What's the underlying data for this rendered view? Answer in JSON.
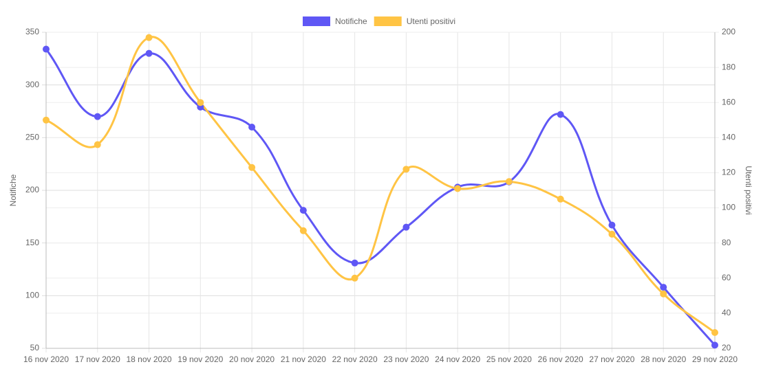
{
  "chart_data": {
    "type": "line",
    "categories": [
      "16 nov 2020",
      "17 nov 2020",
      "18 nov 2020",
      "19 nov 2020",
      "20 nov 2020",
      "21 nov 2020",
      "22 nov 2020",
      "23 nov 2020",
      "24 nov 2020",
      "25 nov 2020",
      "26 nov 2020",
      "27 nov 2020",
      "28 nov 2020",
      "29 nov 2020"
    ],
    "series": [
      {
        "name": "Notifiche",
        "color": "#5f57f5",
        "values": [
          334,
          270,
          330,
          279,
          260,
          181,
          131,
          165,
          203,
          208,
          272,
          167,
          108,
          53
        ]
      },
      {
        "name": "Utenti positivi",
        "color": "#ffc444",
        "axis": "y2",
        "values": [
          150,
          136,
          197,
          160,
          123,
          87,
          60,
          122,
          111,
          115,
          105,
          85,
          51,
          29
        ]
      }
    ],
    "ylabel": "Notifiche",
    "y2label": "Utenti positivi",
    "ylim": [
      50,
      350
    ],
    "yticks": [
      50,
      100,
      150,
      200,
      250,
      300,
      350
    ],
    "y2lim": [
      20,
      200
    ],
    "y2ticks": [
      20,
      40,
      60,
      80,
      100,
      120,
      140,
      160,
      180,
      200
    ],
    "grid": true,
    "legend": "top"
  }
}
